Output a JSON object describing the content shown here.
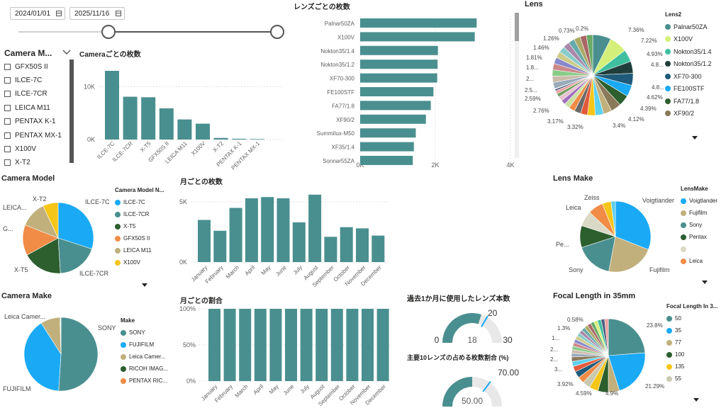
{
  "date_slicer": {
    "start": "2024/01/01",
    "end": "2025/11/16"
  },
  "camera_slicer": {
    "title": "Camera M...",
    "items": [
      "GFX50S II",
      "ILCE-7C",
      "ILCE-7CR",
      "LEICA M11",
      "PENTAX K-1",
      "PENTAX MX-1",
      "X100V",
      "X-T2"
    ]
  },
  "camera_count": {
    "title": "Cameraごとの枚数",
    "yticks": [
      "10K",
      "0K"
    ],
    "categories": [
      "ILCE-7C",
      "ILCE-7CR",
      "X-T5",
      "GFX50S II",
      "LEICA M11",
      "X100V",
      "X-T2",
      "PENTAX K-1",
      "PENTAX MX-1"
    ],
    "values": [
      13000,
      8100,
      8000,
      5900,
      3800,
      3000,
      300,
      150,
      100
    ]
  },
  "lens_count": {
    "title": "レンズごとの枚数",
    "xticks": [
      "0K",
      "2K",
      "4K"
    ],
    "categories": [
      "Palnar50ZA",
      "X100V",
      "Nokton35/1.4",
      "Nokton35/1.2",
      "XF70-300",
      "FE100STF",
      "FA77/1.8",
      "XF90/2",
      "Summilux-M50",
      "XF35/1.4",
      "Sonnar55ZA"
    ],
    "values": [
      3100,
      3050,
      2070,
      2060,
      2050,
      1950,
      1880,
      1750,
      1480,
      1430,
      1400
    ]
  },
  "lens_pie": {
    "title": "Lens",
    "legend_title": "Lens2",
    "legend": [
      "Palnar50ZA",
      "X100V",
      "Nokton35/1.4",
      "Nokton35/1.2",
      "XF70-300",
      "FE100STF",
      "FA77/1.8",
      "XF90/2"
    ],
    "labels": [
      "7.36%",
      "7.22%",
      "4.93%",
      "4.8...",
      "4.8...",
      "4.62%",
      "4.39%",
      "4.12%",
      "3.4%",
      "3.32%",
      "3.17%",
      "2.76%",
      "2.59%",
      "2.5...",
      "2...",
      "1.8...",
      "1.81%",
      "1.46%",
      "1.26%",
      "0.73%",
      "0.2%"
    ]
  },
  "camera_model_pie": {
    "title": "Camera Model",
    "legend_title": "Camera Model N...",
    "legend": [
      "ILCE-7C",
      "ILCE-7CR",
      "X-T5",
      "GFX50S II",
      "LEICA M11",
      "X100V"
    ],
    "labels": [
      "ILCE-7C",
      "ILCE-7CR",
      "X-T5",
      "G...",
      "LEICA...",
      "X-T2"
    ]
  },
  "monthly_count": {
    "title": "月ごとの枚数",
    "yticks": [
      "5K",
      "0K"
    ],
    "categories": [
      "January",
      "February",
      "March",
      "April",
      "May",
      "June",
      "July",
      "August",
      "September",
      "October",
      "November",
      "December"
    ],
    "values": [
      3500,
      2600,
      4500,
      5300,
      5400,
      5300,
      3300,
      5600,
      2100,
      2900,
      2800,
      2200
    ]
  },
  "lens_make_pie": {
    "title": "Lens Make",
    "legend_title": "LensMake",
    "legend": [
      "Voigtlander",
      "Fujifilm",
      "Sony",
      "Pentax",
      "",
      "Leica"
    ],
    "labels": [
      "Voigtlander",
      "Fujifilm",
      "Sony",
      "Pe...",
      "Leica",
      "Zeiss"
    ]
  },
  "camera_make_pie": {
    "title": "Camera Make",
    "legend_title": "Make",
    "legend": [
      "SONY",
      "FUJIFILM",
      "Leica Camer...",
      "RICOH IMAG...",
      "PENTAX RIC..."
    ],
    "labels": [
      "SONY",
      "FUJIFILM",
      "Leica Camer..."
    ]
  },
  "monthly_ratio": {
    "title": "月ごとの割合",
    "yticks": [
      "100%",
      "50%",
      "0%"
    ],
    "categories": [
      "January",
      "February",
      "March",
      "April",
      "May",
      "June",
      "July",
      "August",
      "September",
      "October",
      "November",
      "December"
    ],
    "values": [
      100,
      100,
      100,
      100,
      100,
      100,
      100,
      100,
      100,
      100,
      100,
      100
    ]
  },
  "gauge_lenses": {
    "title": "過去1か月に使用したレンズ本数",
    "value": "18",
    "min": "0",
    "max": "30",
    "target": "20"
  },
  "gauge_top10": {
    "title": "主要10レンズの占める枚数割合 (%)",
    "value": "50.00",
    "target": "70.00"
  },
  "focal_pie": {
    "title": "Focal Length in 35mm",
    "legend_title": "Focal Length In 3...",
    "legend": [
      "50",
      "35",
      "77",
      "100",
      "135",
      "55"
    ],
    "labels": [
      "23.8%",
      "21.29%",
      "4.9%",
      "4.59%",
      "3.92%",
      "3...",
      "2...",
      "2...",
      "1...",
      "1.3%",
      "0.58%"
    ]
  },
  "colors": {
    "teal": "#4a8f8f",
    "sky": "#1aaaf5",
    "olive": "#c1b07c",
    "dgreen": "#2c5e2e",
    "orange": "#f08c46",
    "yellow": "#f5c518",
    "gray_track": "#e8e8e8"
  }
}
